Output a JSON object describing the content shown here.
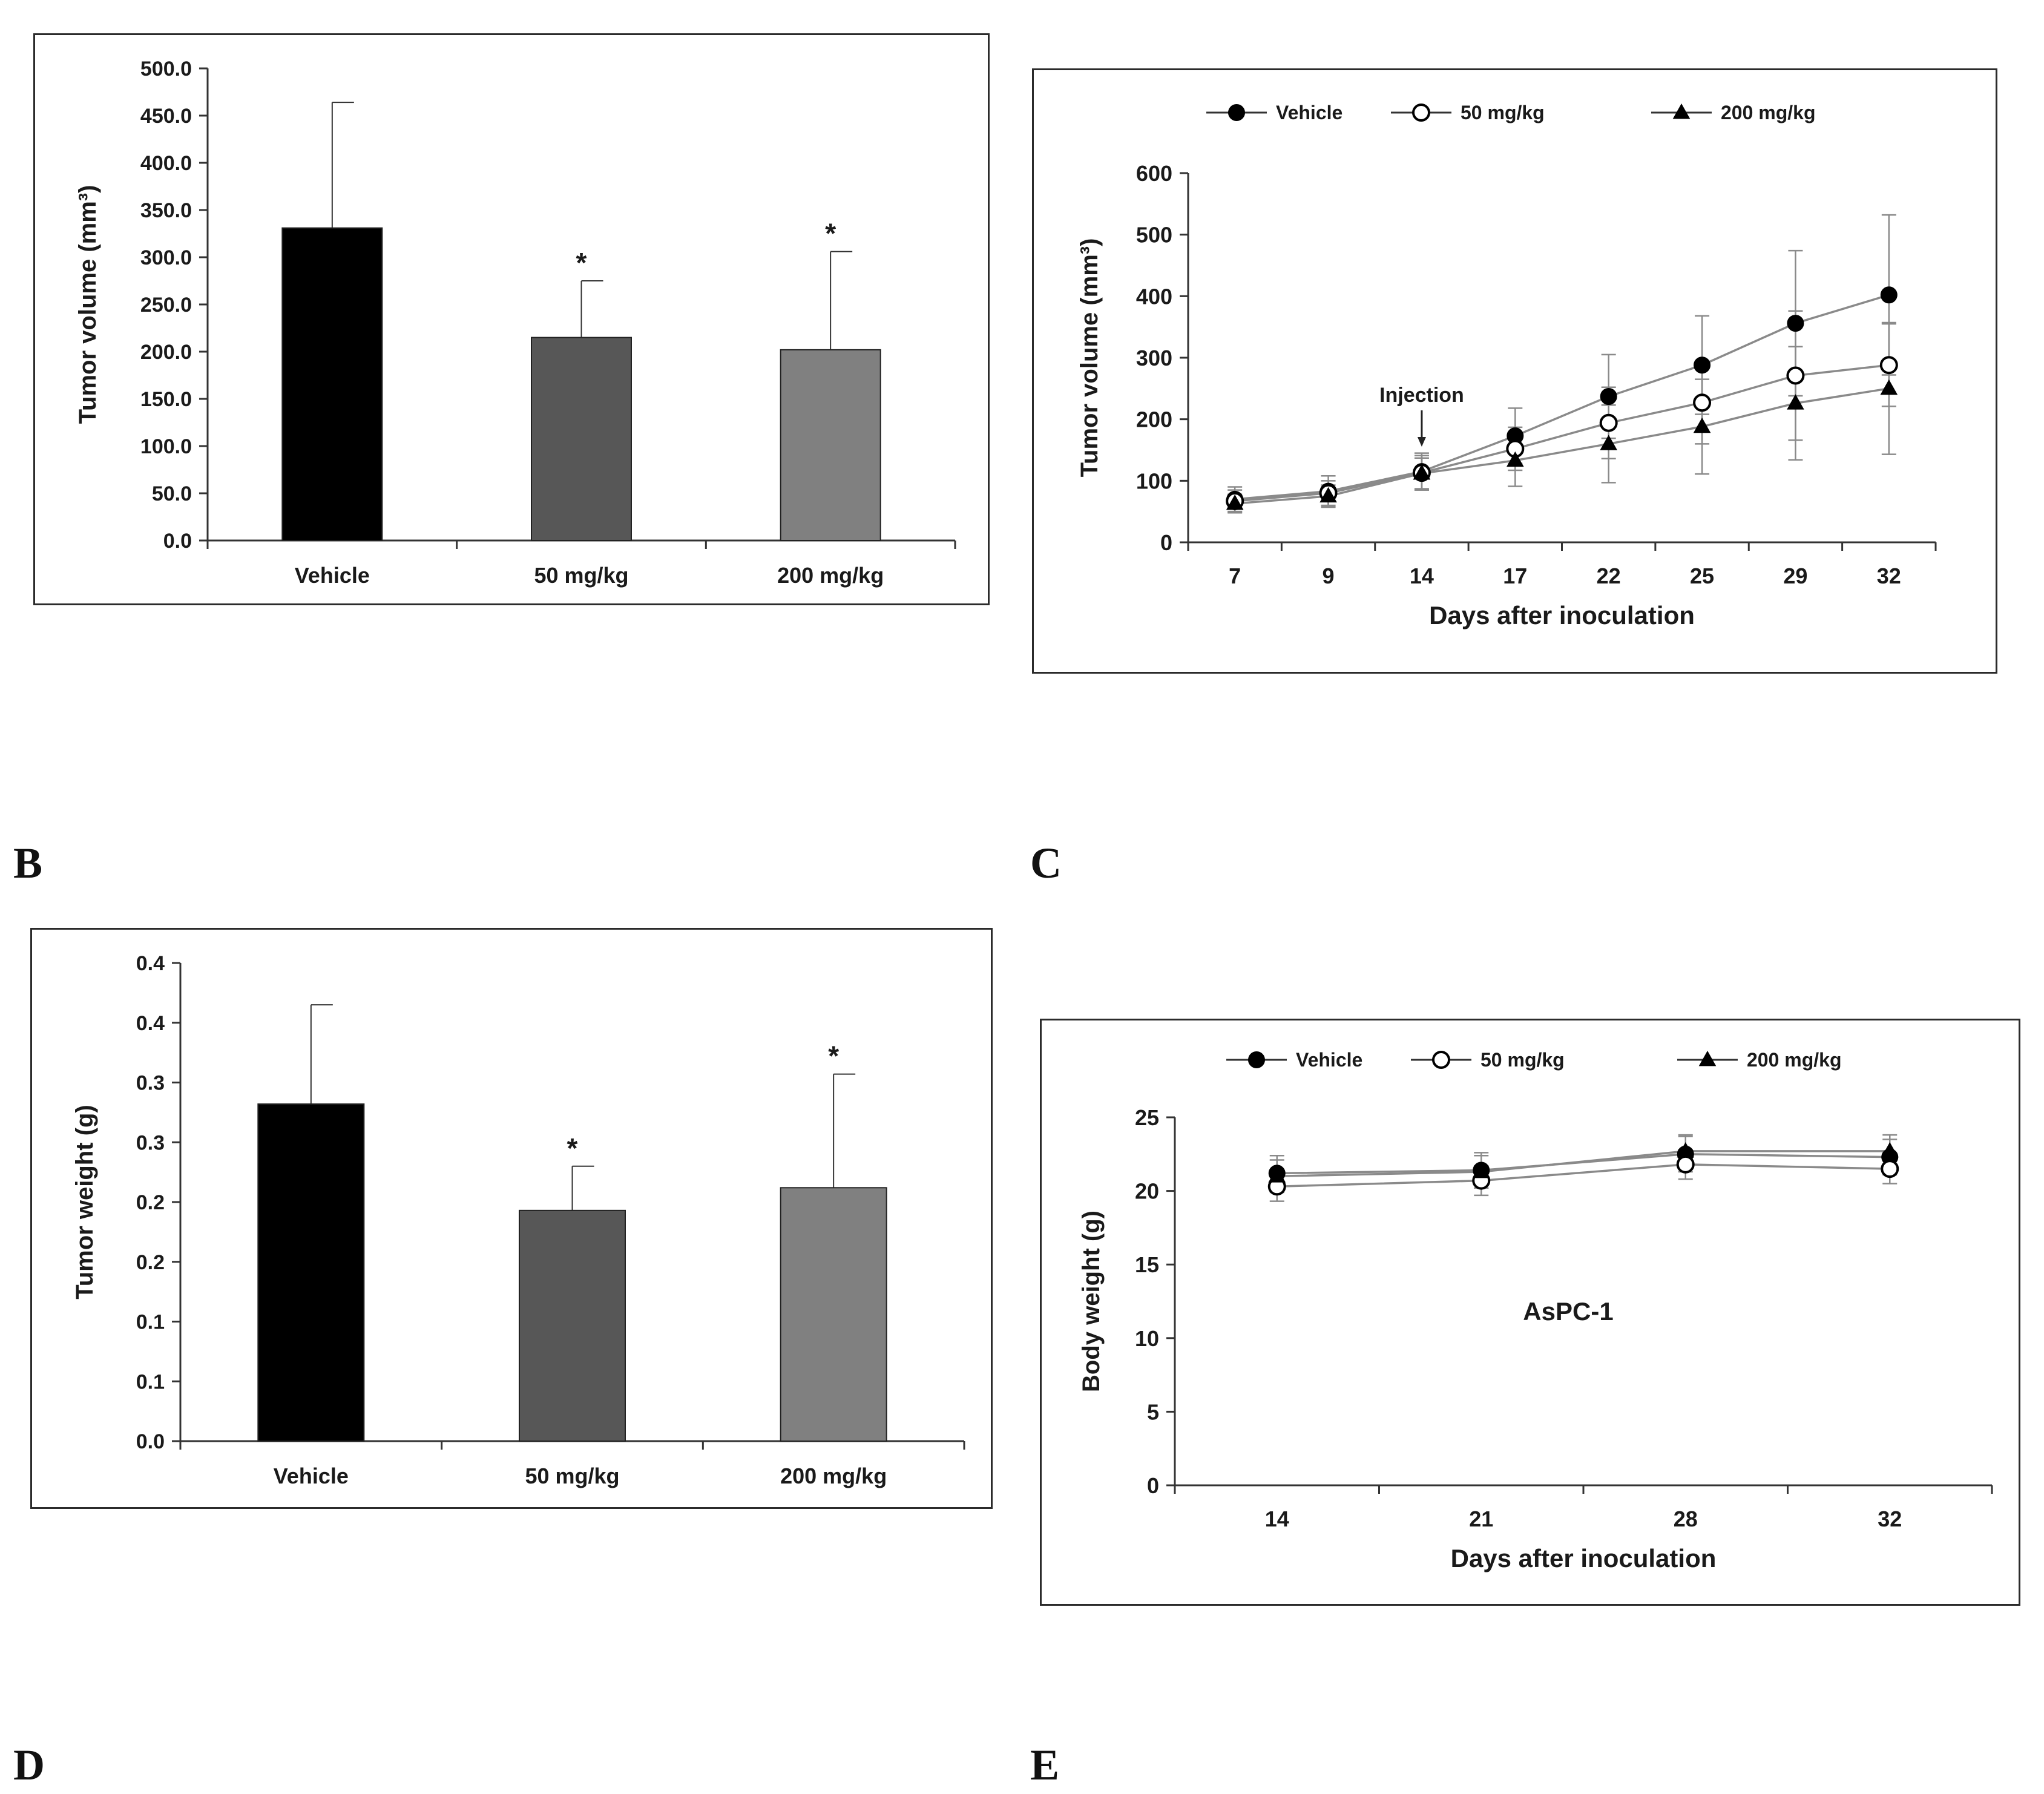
{
  "panel_labels": {
    "b": "B",
    "c": "C",
    "d": "D",
    "e": "E"
  },
  "colors": {
    "vehicle_bar": "#000000",
    "low_bar": "#575757",
    "high_bar": "#808080",
    "axis": "#333333",
    "line": "#8a8a8a",
    "marker": "#000000",
    "frame": "#2b2b2b"
  },
  "chart_data": [
    {
      "id": "bar_volume",
      "type": "bar",
      "title": "",
      "xlabel": "",
      "ylabel": "Tumor volume (mm³)",
      "ylim": [
        0,
        500
      ],
      "yticks": [
        "0.0",
        "50.0",
        "100.0",
        "150.0",
        "200.0",
        "250.0",
        "300.0",
        "350.0",
        "400.0",
        "450.0",
        "500.0"
      ],
      "categories": [
        "Vehicle",
        "50 mg/kg",
        "200 mg/kg"
      ],
      "values": [
        331,
        215,
        202
      ],
      "errors": [
        133,
        60,
        104
      ],
      "significance": [
        "",
        "*",
        "*"
      ]
    },
    {
      "id": "line_volume",
      "type": "line",
      "xlabel": "Days after inoculation",
      "ylabel": "Tumor volume (mm³)",
      "ylim": [
        0,
        600
      ],
      "yticks": [
        "0",
        "100",
        "200",
        "300",
        "400",
        "500",
        "600"
      ],
      "categories": [
        "7",
        "9",
        "14",
        "17",
        "22",
        "25",
        "29",
        "32"
      ],
      "annotation": "Injection",
      "annotation_at": "14",
      "series": [
        {
          "name": "Vehicle",
          "marker": "filled-circle",
          "values": [
            70,
            83,
            115,
            173,
            237,
            288,
            356,
            402
          ],
          "errors": [
            20,
            25,
            30,
            45,
            68,
            80,
            118,
            130
          ]
        },
        {
          "name": "50 mg/kg",
          "marker": "open-circle",
          "values": [
            67,
            80,
            113,
            152,
            194,
            227,
            271,
            288
          ],
          "errors": [
            18,
            20,
            28,
            35,
            58,
            67,
            105,
            67
          ]
        },
        {
          "name": "200 mg/kg",
          "marker": "filled-triangle",
          "values": [
            63,
            75,
            112,
            133,
            160,
            188,
            226,
            250
          ],
          "errors": [
            15,
            18,
            25,
            42,
            63,
            77,
            92,
            107
          ]
        }
      ]
    },
    {
      "id": "bar_weight",
      "type": "bar",
      "xlabel": "",
      "ylabel": "Tumor weight (g)",
      "ylim": [
        0,
        0.4
      ],
      "yticks": [
        "0.0",
        "0.1",
        "0.1",
        "0.2",
        "0.2",
        "0.3",
        "0.3",
        "0.4",
        "0.4"
      ],
      "categories": [
        "Vehicle",
        "50 mg/kg",
        "200 mg/kg"
      ],
      "values": [
        0.282,
        0.193,
        0.212
      ],
      "errors": [
        0.083,
        0.037,
        0.095
      ],
      "significance": [
        "",
        "*",
        "*"
      ]
    },
    {
      "id": "line_body_weight",
      "type": "line",
      "xlabel": "Days after inoculation",
      "ylabel": "Body weight (g)",
      "ylim": [
        0,
        25
      ],
      "yticks": [
        "0",
        "5",
        "10",
        "15",
        "20",
        "25"
      ],
      "categories": [
        "14",
        "21",
        "28",
        "32"
      ],
      "annotation": "AsPC-1",
      "series": [
        {
          "name": "Vehicle",
          "marker": "filled-circle",
          "values": [
            21.2,
            21.4,
            22.5,
            22.3
          ],
          "errors": [
            1.2,
            1.2,
            1.2,
            1.2
          ]
        },
        {
          "name": "50 mg/kg",
          "marker": "open-circle",
          "values": [
            20.3,
            20.7,
            21.8,
            21.5
          ],
          "errors": [
            1.0,
            1.0,
            1.0,
            1.0
          ]
        },
        {
          "name": "200 mg/kg",
          "marker": "filled-triangle",
          "values": [
            21.0,
            21.3,
            22.7,
            22.7
          ],
          "errors": [
            1.1,
            1.1,
            1.1,
            1.1
          ]
        }
      ]
    }
  ]
}
